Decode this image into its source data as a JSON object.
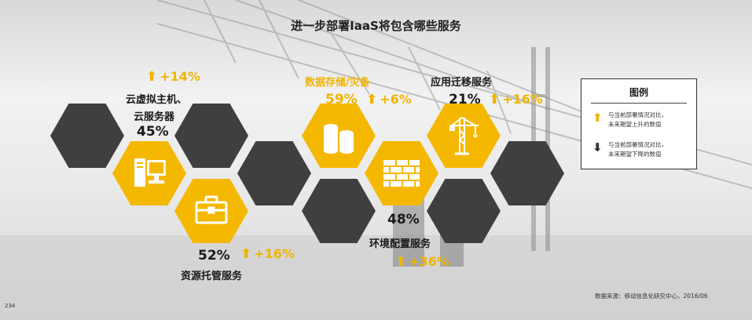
{
  "title": "进一步部署IaaS将包含哪些服务",
  "services": [
    {
      "id": "vm",
      "name_line1": "云虚拟主机、",
      "name_line2": "云服务器",
      "pct": "45%",
      "change": "+14%",
      "icon": "computer-icon"
    },
    {
      "id": "storage",
      "name": "数据存储/灾备",
      "pct": "59%",
      "change": "+6%",
      "icon": "database-icon"
    },
    {
      "id": "migration",
      "name": "应用迁移服务",
      "pct": "21%",
      "change": "+16%",
      "icon": "crane-icon"
    },
    {
      "id": "hosting",
      "name": "资源托管服务",
      "pct": "52%",
      "change": "+16%",
      "icon": "briefcase-icon"
    },
    {
      "id": "config",
      "name": "环境配置服务",
      "pct": "48%",
      "change": "+36%",
      "icon": "brick-wall-icon"
    }
  ],
  "legend": {
    "title": "图例",
    "up_line1": "与当前部署情况对比，",
    "up_line2": "未来期望上升的数值",
    "down_line1": "与当前部署情况对比，",
    "down_line2": "未来期望下降的数值"
  },
  "arrow_up": "⬆",
  "arrow_down": "⬇",
  "source": "数据来源：移动信息化研究中心，2016/06",
  "page_number": "234",
  "colors": {
    "accent": "#f5b800",
    "dark": "#3f3f3f",
    "accent_text": "#f0b400"
  }
}
